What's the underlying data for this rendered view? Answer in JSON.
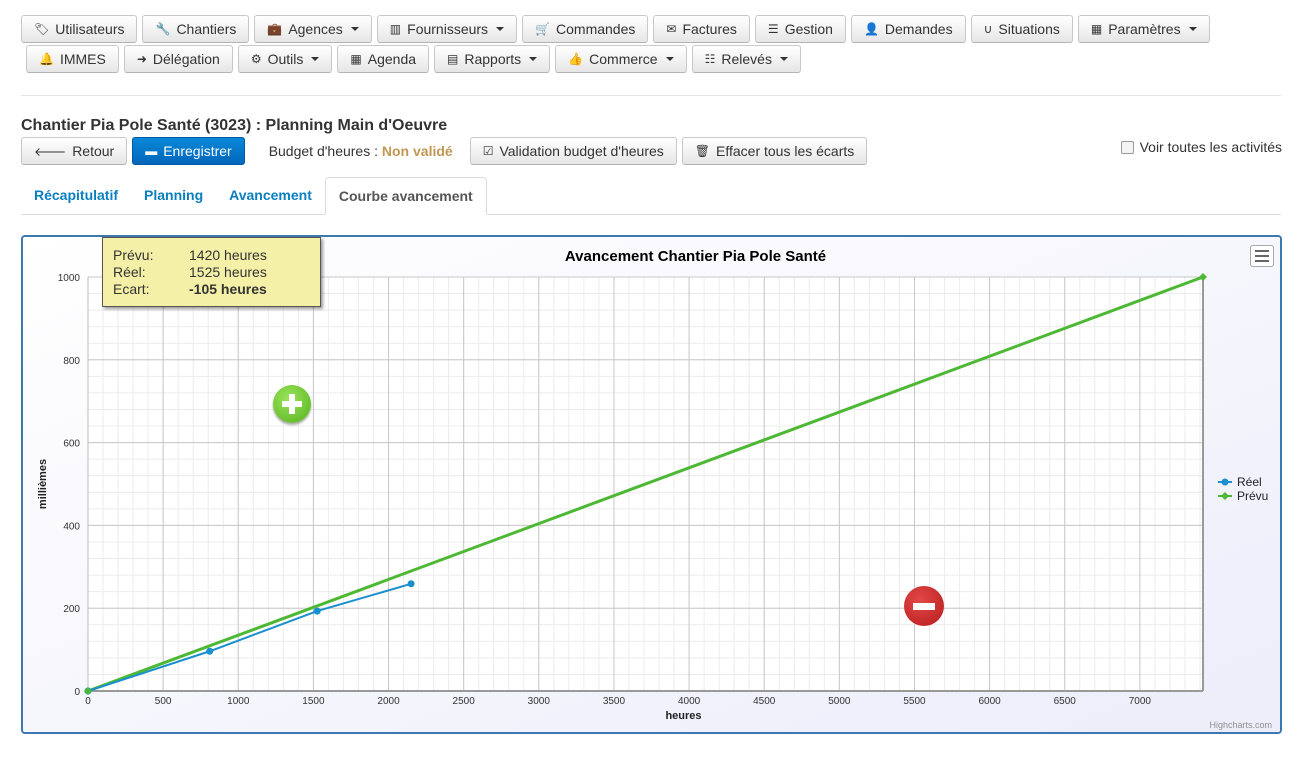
{
  "nav": {
    "row1": [
      {
        "label": "Utilisateurs",
        "icon": "tag-icon",
        "glyph": "🏷",
        "dropdown": false
      },
      {
        "label": "Chantiers",
        "icon": "wrench-icon",
        "glyph": "🔧",
        "dropdown": false
      },
      {
        "label": "Agences",
        "icon": "briefcase-icon",
        "glyph": "💼",
        "dropdown": true
      },
      {
        "label": "Fournisseurs",
        "icon": "barcode-icon",
        "glyph": "▥",
        "dropdown": true
      },
      {
        "label": "Commandes",
        "icon": "shopping-cart-icon",
        "glyph": "🛒",
        "dropdown": false
      },
      {
        "label": "Factures",
        "icon": "envelope-icon",
        "glyph": "✉",
        "dropdown": false
      },
      {
        "label": "Gestion",
        "icon": "list-icon",
        "glyph": "☰",
        "dropdown": false
      },
      {
        "label": "Demandes",
        "icon": "user-icon",
        "glyph": "👤",
        "dropdown": false
      },
      {
        "label": "Situations",
        "icon": "magnet-icon",
        "glyph": "∪",
        "dropdown": false
      },
      {
        "label": "Paramètres",
        "icon": "th-icon",
        "glyph": "▦",
        "dropdown": true
      }
    ],
    "row2": [
      {
        "label": "IMMES",
        "icon": "bell-icon",
        "glyph": "🔔",
        "dropdown": false
      },
      {
        "label": "Délégation",
        "icon": "arrow-right-icon",
        "glyph": "➜",
        "dropdown": false
      },
      {
        "label": "Outils",
        "icon": "cog-icon",
        "glyph": "⚙",
        "dropdown": true
      },
      {
        "label": "Agenda",
        "icon": "calendar-icon",
        "glyph": "▦",
        "dropdown": false
      },
      {
        "label": "Rapports",
        "icon": "list-alt-icon",
        "glyph": "▤",
        "dropdown": true
      },
      {
        "label": "Commerce",
        "icon": "thumbs-up-icon",
        "glyph": "👍",
        "dropdown": true
      },
      {
        "label": "Relevés",
        "icon": "th-list-icon",
        "glyph": "☷",
        "dropdown": true
      }
    ]
  },
  "page": {
    "title": "Chantier Pia Pole Santé (3023) : Planning Main d'Oeuvre",
    "back_label": "Retour",
    "save_label": "Enregistrer",
    "budget_label": "Budget d'heures :",
    "budget_status": "Non validé",
    "validate_label": "Validation budget d'heures",
    "clear_label": "Effacer tous les écarts",
    "show_all_label": "Voir toutes les activités"
  },
  "tabs": [
    {
      "label": "Récapitulatif",
      "active": false
    },
    {
      "label": "Planning",
      "active": false
    },
    {
      "label": "Avancement",
      "active": false
    },
    {
      "label": "Courbe avancement",
      "active": true
    }
  ],
  "tooltip": {
    "prevu_label": "Prévu:",
    "prevu_value": "1420 heures",
    "reel_label": "Réel:",
    "reel_value": "1525 heures",
    "ecart_label": "Ecart:",
    "ecart_value": "-105 heures"
  },
  "credit": "Highcharts.com",
  "chart_data": {
    "type": "line",
    "title": "Avancement Chantier Pia Pole Santé",
    "xlabel": "heures",
    "ylabel": "millièmes",
    "xlim": [
      0,
      7420
    ],
    "ylim": [
      0,
      1000
    ],
    "xticks": [
      0,
      500,
      1000,
      1500,
      2000,
      2500,
      3000,
      3500,
      4000,
      4500,
      5000,
      5500,
      6000,
      6500,
      7000
    ],
    "yticks": [
      0,
      200,
      400,
      600,
      800,
      1000
    ],
    "grid": true,
    "legend_position": "right",
    "series": [
      {
        "name": "Réel",
        "color": "#1a8fd0",
        "marker": "circle",
        "points": [
          [
            0,
            0
          ],
          [
            810,
            96
          ],
          [
            1525,
            193
          ],
          [
            2150,
            259
          ]
        ]
      },
      {
        "name": "Prévu",
        "color": "#4db834",
        "marker": "diamond",
        "points": [
          [
            0,
            0
          ],
          [
            7420,
            1000
          ]
        ]
      }
    ]
  }
}
